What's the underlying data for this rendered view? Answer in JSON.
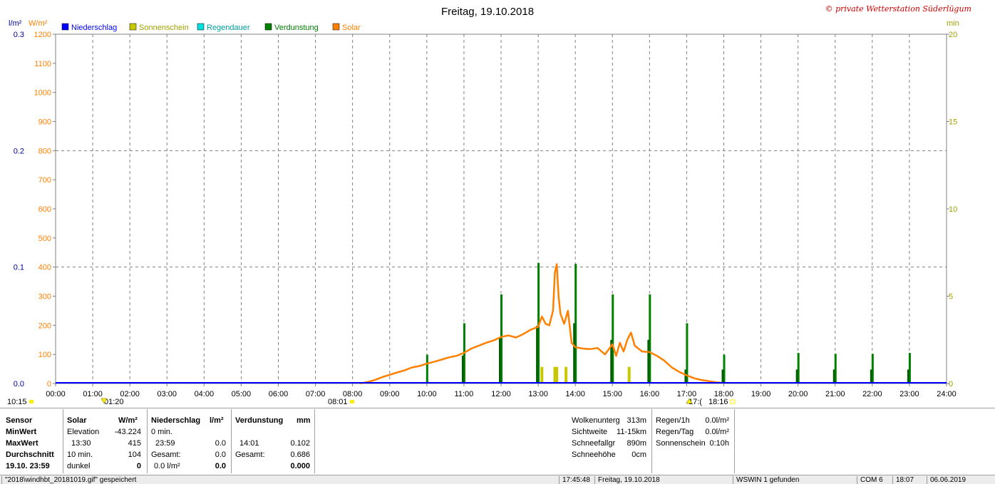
{
  "title": "Freitag, 19.10.2018",
  "copyright": "© private Wetterstation Süderlügum",
  "units": {
    "left1": "l/m²",
    "left2": "W/m²",
    "right": "min"
  },
  "legend": [
    {
      "label": "Niederschlag",
      "color": "#0000ff"
    },
    {
      "label": "Sonnenschein",
      "color": "#c8c800"
    },
    {
      "label": "Regendauer",
      "color": "#00e0e0"
    },
    {
      "label": "Verdunstung",
      "color": "#008000"
    },
    {
      "label": "Solar",
      "color": "#ff8000"
    }
  ],
  "sun_marks": {
    "sunrise_label": "08:01",
    "sunset_label": "18:16",
    "moonrise_label": "10:15",
    "moon_low_label": "01:20",
    "moon_high_label": "17:("
  },
  "chart_data": {
    "type": "line",
    "x_axis": {
      "min": 0,
      "max": 24,
      "ticks": [
        "00:00",
        "01:00",
        "02:00",
        "03:00",
        "04:00",
        "05:00",
        "06:00",
        "07:00",
        "08:00",
        "09:00",
        "10:00",
        "11:00",
        "12:00",
        "13:00",
        "14:00",
        "15:00",
        "16:00",
        "17:00",
        "18:00",
        "19:00",
        "20:00",
        "21:00",
        "22:00",
        "23:00",
        "24:00"
      ]
    },
    "y_axis_rain": {
      "label": "l/m²",
      "min": 0,
      "max": 0.3,
      "ticks": [
        "0.0",
        "0.1",
        "0.2",
        "0.3"
      ],
      "color": "#0000a0"
    },
    "y_axis_solar": {
      "label": "W/m²",
      "min": 0,
      "max": 1200,
      "ticks": [
        "0",
        "100",
        "200",
        "300",
        "400",
        "500",
        "600",
        "700",
        "800",
        "900",
        "1000",
        "1100",
        "1200"
      ],
      "color": "#ff8000"
    },
    "y_axis_minutes": {
      "label": "min",
      "min": 0,
      "max": 20,
      "ticks": [
        "0",
        "5",
        "10",
        "15",
        "20"
      ],
      "color": "#a0a000"
    },
    "solar": {
      "name": "Solar",
      "points": [
        [
          8.2,
          0
        ],
        [
          8.4,
          5
        ],
        [
          8.6,
          12
        ],
        [
          8.8,
          22
        ],
        [
          9.0,
          30
        ],
        [
          9.2,
          38
        ],
        [
          9.4,
          45
        ],
        [
          9.6,
          55
        ],
        [
          9.8,
          60
        ],
        [
          10.0,
          68
        ],
        [
          10.2,
          75
        ],
        [
          10.4,
          82
        ],
        [
          10.6,
          90
        ],
        [
          10.8,
          95
        ],
        [
          11.0,
          105
        ],
        [
          11.2,
          120
        ],
        [
          11.4,
          130
        ],
        [
          11.6,
          140
        ],
        [
          11.8,
          148
        ],
        [
          12.0,
          160
        ],
        [
          12.2,
          165
        ],
        [
          12.4,
          158
        ],
        [
          12.6,
          170
        ],
        [
          12.8,
          185
        ],
        [
          13.0,
          195
        ],
        [
          13.1,
          230
        ],
        [
          13.2,
          205
        ],
        [
          13.3,
          200
        ],
        [
          13.4,
          250
        ],
        [
          13.45,
          380
        ],
        [
          13.5,
          410
        ],
        [
          13.55,
          300
        ],
        [
          13.6,
          240
        ],
        [
          13.7,
          205
        ],
        [
          13.8,
          250
        ],
        [
          13.9,
          140
        ],
        [
          14.0,
          125
        ],
        [
          14.2,
          120
        ],
        [
          14.4,
          118
        ],
        [
          14.6,
          122
        ],
        [
          14.8,
          100
        ],
        [
          15.0,
          135
        ],
        [
          15.1,
          95
        ],
        [
          15.2,
          140
        ],
        [
          15.3,
          110
        ],
        [
          15.4,
          150
        ],
        [
          15.5,
          175
        ],
        [
          15.6,
          130
        ],
        [
          15.8,
          110
        ],
        [
          16.0,
          108
        ],
        [
          16.2,
          95
        ],
        [
          16.4,
          78
        ],
        [
          16.6,
          55
        ],
        [
          16.8,
          40
        ],
        [
          17.0,
          28
        ],
        [
          17.2,
          18
        ],
        [
          17.4,
          12
        ],
        [
          17.6,
          8
        ],
        [
          17.8,
          4
        ],
        [
          18.0,
          2
        ]
      ]
    },
    "verdunstung": {
      "name": "Verdunstung",
      "bars": [
        [
          10.0,
          1.65
        ],
        [
          11.0,
          3.45
        ],
        [
          12.0,
          5.1
        ],
        [
          13.0,
          6.9
        ],
        [
          14.0,
          6.85
        ],
        [
          15.0,
          5.1
        ],
        [
          16.0,
          5.1
        ],
        [
          17.0,
          3.45
        ],
        [
          18.0,
          1.65
        ],
        [
          20.0,
          1.75
        ],
        [
          21.0,
          1.7
        ],
        [
          22.0,
          1.7
        ],
        [
          23.0,
          1.75
        ]
      ],
      "sub_bars": [
        [
          11.0,
          1.6
        ],
        [
          12.0,
          2.6
        ],
        [
          13.0,
          3.3
        ],
        [
          14.0,
          3.45
        ],
        [
          15.0,
          2.5
        ],
        [
          16.0,
          2.5
        ],
        [
          17.0,
          0.8
        ],
        [
          18.0,
          0.8
        ],
        [
          20.0,
          0.8
        ],
        [
          21.0,
          0.8
        ],
        [
          22.0,
          0.8
        ],
        [
          23.0,
          0.8
        ]
      ]
    },
    "sonnenschein": {
      "name": "Sonnenschein",
      "bars": [
        [
          13.1,
          0.95
        ],
        [
          13.45,
          0.95
        ],
        [
          13.5,
          0.95
        ],
        [
          13.75,
          0.95
        ],
        [
          15.45,
          0.95
        ]
      ]
    },
    "niederschlag": {
      "name": "Niederschlag",
      "value": 0.0
    }
  },
  "stats": {
    "sensor": {
      "header": "Sensor",
      "rows": [
        "MinWert",
        "MaxWert",
        "Durchschnitt",
        "19.10. 23:59"
      ]
    },
    "solar": {
      "header": "Solar",
      "unit": "W/m²",
      "rows": [
        {
          "label": "Elevation",
          "value": "-43.224"
        },
        {
          "label": "13:30",
          "value": "415"
        },
        {
          "label": "10 min.",
          "value": "104"
        },
        {
          "label": "dunkel",
          "value": "0"
        }
      ]
    },
    "niederschlag": {
      "header": "Niederschlag",
      "unit": "l/m²",
      "rows": [
        {
          "label": "0 min.",
          "value": ""
        },
        {
          "label": "23:59",
          "value": "0.0"
        },
        {
          "label": "Gesamt:",
          "value": "0.0"
        },
        {
          "label": "0.0 l/m²",
          "value": "0.0"
        }
      ]
    },
    "verdunstung": {
      "header": "Verdunstung",
      "unit": "mm",
      "rows": [
        {
          "label": "",
          "value": ""
        },
        {
          "label": "14:01",
          "value": "0.102"
        },
        {
          "label": "Gesamt:",
          "value": "0.686"
        },
        {
          "label": "",
          "value": "0.000"
        }
      ]
    },
    "wolken": [
      {
        "label": "Wolkenunterg",
        "value": "313m"
      },
      {
        "label": "Sichtweite",
        "value": "11-15km"
      },
      {
        "label": "Schneefallgr",
        "value": "890m"
      },
      {
        "label": "Schneehöhe",
        "value": "0cm"
      }
    ],
    "regen": [
      {
        "label": "Regen/1h",
        "value": "0.0l/m²"
      },
      {
        "label": "Regen/Tag",
        "value": "0.0l/m²"
      },
      {
        "label": "Sonnenschein",
        "value": "0:10h"
      }
    ]
  },
  "statusbar": [
    "\"2018\\windhbt_20181019.gif\" gespeichert",
    "17:45:48",
    "Freitag, 19.10.2018",
    "WSWIN 1 gefunden",
    "COM 6",
    "18:07",
    "06.06.2019"
  ]
}
